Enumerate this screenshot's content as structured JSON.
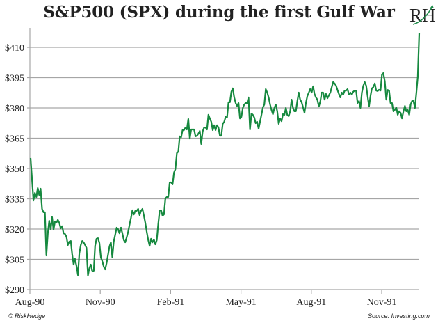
{
  "title": "S&P500 (SPX) during the first Gulf War",
  "logo": {
    "text": "RH",
    "icon": "riskhedge-logo-icon"
  },
  "footer": {
    "left": "© RiskHedge",
    "right": "Source: Investing.com"
  },
  "colors": {
    "line": "#16893f",
    "grid": "#a6a6a6",
    "axis": "#a6a6a6"
  },
  "chart_data": {
    "type": "line",
    "title": "S&P500 (SPX) during the first Gulf War",
    "xlabel": "",
    "ylabel": "",
    "ylim": [
      290,
      410
    ],
    "yticks": [
      410,
      395,
      380,
      365,
      350,
      335,
      320,
      305,
      290
    ],
    "ytick_labels": [
      "$410",
      "$395",
      "$380",
      "$365",
      "$350",
      "$335",
      "$320",
      "$305",
      "$290"
    ],
    "xticks": [
      "Aug-90",
      "Nov-90",
      "Feb-91",
      "May-91",
      "Aug-91",
      "Nov-91"
    ],
    "x_range": [
      "Aug-90",
      "Dec-91"
    ],
    "grid": true,
    "legend": "none",
    "series": [
      {
        "name": "S&P 500 (SPX)",
        "values": [
          355.2,
          344.5,
          334.1,
          337.9,
          335.9,
          340.3,
          336.9,
          340.0,
          330.0,
          328.3,
          328.3,
          306.9,
          317.9,
          324.1,
          319.7,
          325.9,
          319.7,
          323.8,
          323.1,
          324.5,
          323.1,
          320.3,
          321.4,
          317.9,
          317.6,
          316.2,
          312.1,
          313.8,
          314.1,
          307.6,
          302.4,
          305.2,
          301.7,
          297.2,
          307.9,
          312.1,
          314.1,
          313.4,
          312.1,
          310.7,
          297.0,
          300.7,
          302.4,
          299.0,
          299.0,
          311.7,
          315.2,
          315.5,
          313.1,
          305.9,
          304.1,
          301.4,
          300.0,
          303.1,
          307.2,
          311.4,
          313.4,
          305.9,
          313.8,
          317.2,
          320.7,
          320.0,
          317.9,
          320.7,
          317.9,
          314.5,
          313.4,
          315.9,
          318.6,
          322.1,
          325.5,
          329.3,
          327.2,
          329.0,
          329.0,
          330.0,
          326.9,
          329.0,
          330.0,
          326.6,
          323.1,
          318.6,
          314.8,
          311.7,
          315.2,
          313.4,
          314.8,
          312.4,
          314.5,
          322.4,
          329.0,
          329.3,
          326.6,
          327.2,
          335.2,
          335.9,
          335.9,
          343.1,
          343.1,
          342.1,
          348.0,
          349.7,
          357.6,
          358.3,
          365.9,
          365.5,
          369.0,
          369.0,
          370.3,
          369.3,
          374.5,
          364.8,
          369.3,
          369.3,
          369.3,
          365.9,
          366.2,
          367.2,
          368.6,
          362.1,
          368.3,
          370.3,
          370.3,
          369.3,
          376.6,
          374.8,
          373.1,
          369.0,
          371.4,
          369.0,
          371.4,
          370.3,
          366.2,
          366.2,
          372.1,
          373.1,
          375.5,
          375.2,
          382.8,
          382.8,
          388.0,
          389.7,
          385.2,
          382.4,
          381.0,
          382.4,
          374.8,
          375.5,
          380.0,
          381.7,
          382.4,
          382.4,
          385.2,
          369.3,
          377.2,
          376.6,
          375.2,
          372.4,
          373.1,
          369.7,
          373.1,
          376.6,
          380.3,
          381.7,
          389.3,
          387.6,
          385.2,
          381.7,
          379.0,
          376.9,
          380.0,
          381.7,
          378.3,
          372.1,
          374.8,
          373.4,
          376.9,
          376.6,
          380.0,
          376.6,
          375.9,
          378.3,
          384.1,
          380.0,
          378.3,
          378.3,
          383.4,
          387.6,
          384.1,
          382.8,
          380.3,
          377.6,
          382.4,
          385.9,
          387.6,
          389.3,
          387.6,
          390.7,
          386.9,
          385.2,
          384.1,
          380.7,
          383.1,
          387.6,
          387.6,
          384.1,
          386.9,
          384.8,
          386.2,
          387.6,
          390.3,
          392.8,
          392.1,
          391.0,
          388.9,
          386.9,
          385.2,
          387.6,
          386.6,
          388.6,
          388.6,
          389.3,
          386.6,
          387.6,
          386.6,
          388.0,
          388.6,
          388.6,
          382.4,
          383.4,
          380.0,
          387.6,
          391.0,
          392.8,
          391.0,
          385.9,
          380.7,
          385.9,
          389.7,
          390.3,
          392.1,
          388.6,
          388.3,
          389.0,
          388.6,
          396.6,
          397.2,
          393.1,
          384.1,
          388.9,
          388.6,
          382.4,
          382.4,
          378.3,
          379.0,
          380.3,
          376.6,
          378.3,
          377.6,
          374.8,
          378.3,
          381.0,
          378.3,
          379.0,
          376.6,
          381.7,
          383.4,
          383.4,
          380.0,
          387.6,
          395.5,
          417.2
        ]
      }
    ]
  }
}
